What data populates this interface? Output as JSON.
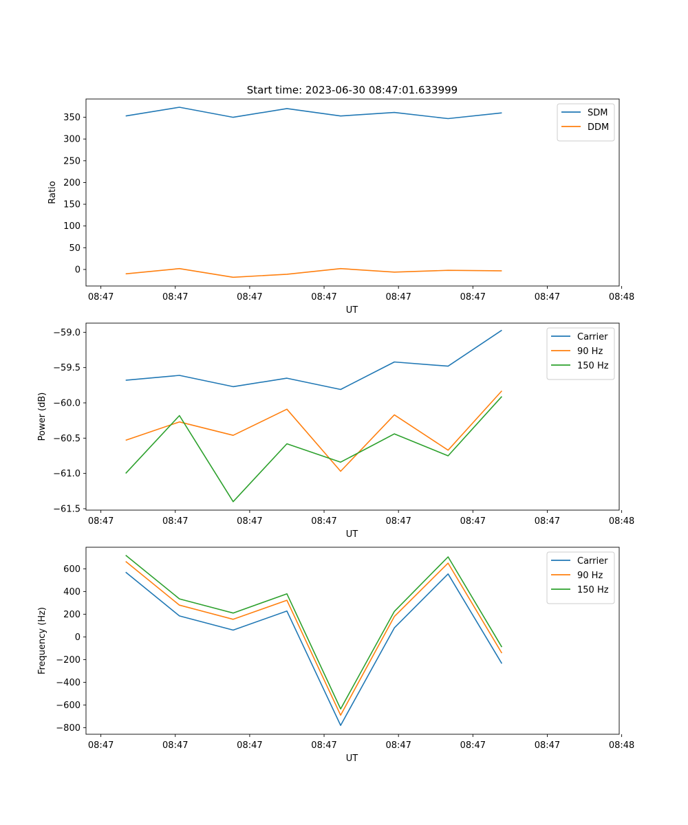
{
  "figure": {
    "title": "Start time: 2023-06-30 08:47:01.633999"
  },
  "colors": {
    "blue": "#1f77b4",
    "orange": "#ff7f0e",
    "green": "#2ca02c"
  },
  "chart_data": [
    {
      "type": "line",
      "xlabel": "UT",
      "ylabel": "Ratio",
      "x_tick_labels": [
        "08:47",
        "08:47",
        "08:47",
        "08:47",
        "08:47",
        "08:47",
        "08:47",
        "08:48"
      ],
      "y_ticks": [
        0,
        50,
        100,
        150,
        200,
        250,
        300,
        350
      ],
      "ylim": [
        -38,
        392
      ],
      "xlim": [
        -0.48,
        5.97
      ],
      "legend": "upper-right",
      "grid": false,
      "x": [
        0,
        0.65,
        1.3,
        1.95,
        2.6,
        3.25,
        3.9,
        4.55
      ],
      "series": [
        {
          "name": "SDM",
          "color": "blue",
          "values": [
            353,
            373,
            350,
            370,
            353,
            361,
            347,
            360
          ]
        },
        {
          "name": "DDM",
          "color": "orange",
          "values": [
            -10,
            2,
            -18,
            -11,
            2,
            -6,
            -2,
            -3
          ]
        }
      ]
    },
    {
      "type": "line",
      "xlabel": "UT",
      "ylabel": "Power (dB)",
      "x_tick_labels": [
        "08:47",
        "08:47",
        "08:47",
        "08:47",
        "08:47",
        "08:47",
        "08:47",
        "08:48"
      ],
      "y_ticks": [
        -61.5,
        -61.0,
        -60.5,
        -60.0,
        -59.5,
        -59.0
      ],
      "y_tick_labels": [
        "−61.5",
        "−61.0",
        "−60.5",
        "−60.0",
        "−59.5",
        "−59.0"
      ],
      "ylim": [
        -61.52,
        -58.87
      ],
      "xlim": [
        -0.48,
        5.97
      ],
      "legend": "upper-right",
      "grid": false,
      "x": [
        0,
        0.65,
        1.3,
        1.95,
        2.6,
        3.25,
        3.9,
        4.55
      ],
      "series": [
        {
          "name": "Carrier",
          "color": "blue",
          "values": [
            -59.68,
            -59.61,
            -59.77,
            -59.65,
            -59.81,
            -59.42,
            -59.48,
            -58.97
          ]
        },
        {
          "name": "90 Hz",
          "color": "orange",
          "values": [
            -60.53,
            -60.27,
            -60.46,
            -60.09,
            -60.97,
            -60.17,
            -60.67,
            -59.83
          ]
        },
        {
          "name": "150 Hz",
          "color": "green",
          "values": [
            -61.0,
            -60.18,
            -61.4,
            -60.58,
            -60.84,
            -60.44,
            -60.75,
            -59.91
          ]
        }
      ]
    },
    {
      "type": "line",
      "xlabel": "UT",
      "ylabel": "Frequency (Hz)",
      "x_tick_labels": [
        "08:47",
        "08:47",
        "08:47",
        "08:47",
        "08:47",
        "08:47",
        "08:47",
        "08:48"
      ],
      "y_ticks": [
        -800,
        -600,
        -400,
        -200,
        0,
        200,
        400,
        600
      ],
      "y_tick_labels": [
        "−800",
        "−600",
        "−400",
        "−200",
        "0",
        "200",
        "400",
        "600"
      ],
      "ylim": [
        -858,
        790
      ],
      "xlim": [
        -0.48,
        5.97
      ],
      "legend": "upper-right",
      "grid": false,
      "x": [
        0,
        0.65,
        1.3,
        1.95,
        2.6,
        3.25,
        3.9,
        4.55
      ],
      "series": [
        {
          "name": "Carrier",
          "color": "blue",
          "values": [
            570,
            185,
            60,
            228,
            -780,
            80,
            555,
            -235
          ]
        },
        {
          "name": "90 Hz",
          "color": "orange",
          "values": [
            665,
            280,
            155,
            323,
            -690,
            180,
            650,
            -143
          ]
        },
        {
          "name": "150 Hz",
          "color": "green",
          "values": [
            720,
            335,
            210,
            380,
            -635,
            225,
            705,
            -90
          ]
        }
      ]
    }
  ]
}
